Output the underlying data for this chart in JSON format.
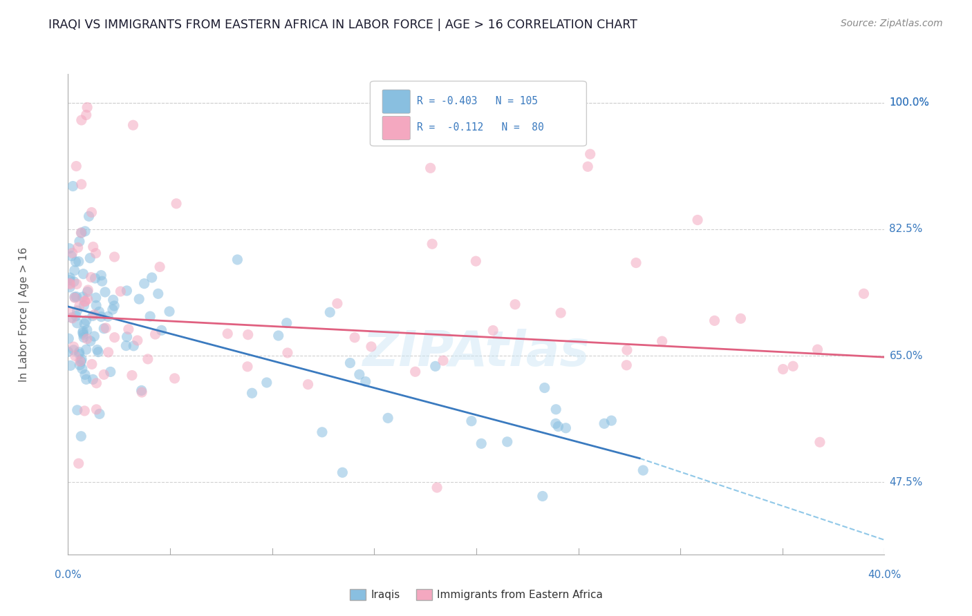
{
  "title": "IRAQI VS IMMIGRANTS FROM EASTERN AFRICA IN LABOR FORCE | AGE > 16 CORRELATION CHART",
  "source": "Source: ZipAtlas.com",
  "ylabel_label": "In Labor Force | Age > 16",
  "ylabel_labels": [
    "100.0%",
    "82.5%",
    "65.0%",
    "47.5%"
  ],
  "ylabel_values": [
    1.0,
    0.825,
    0.65,
    0.475
  ],
  "iraqi_color": "#89bfe0",
  "ea_color": "#f4a8c0",
  "iraqi_line_color": "#3a7abf",
  "ea_line_color": "#e06080",
  "dashed_line_color": "#90c8e8",
  "watermark": "ZIPAtlas",
  "background_color": "#ffffff",
  "plot_bg_color": "#ffffff",
  "grid_color": "#d0d0d0",
  "x_min": 0.0,
  "x_max": 0.4,
  "y_min": 0.375,
  "y_max": 1.04,
  "iraqi_line": {
    "x0": 0.0,
    "x1": 0.28,
    "y0": 0.718,
    "y1": 0.508
  },
  "ea_line": {
    "x0": 0.0,
    "x1": 0.4,
    "y0": 0.705,
    "y1": 0.648
  },
  "dashed_line": {
    "x0": 0.28,
    "x1": 0.4,
    "y0": 0.508,
    "y1": 0.395
  }
}
